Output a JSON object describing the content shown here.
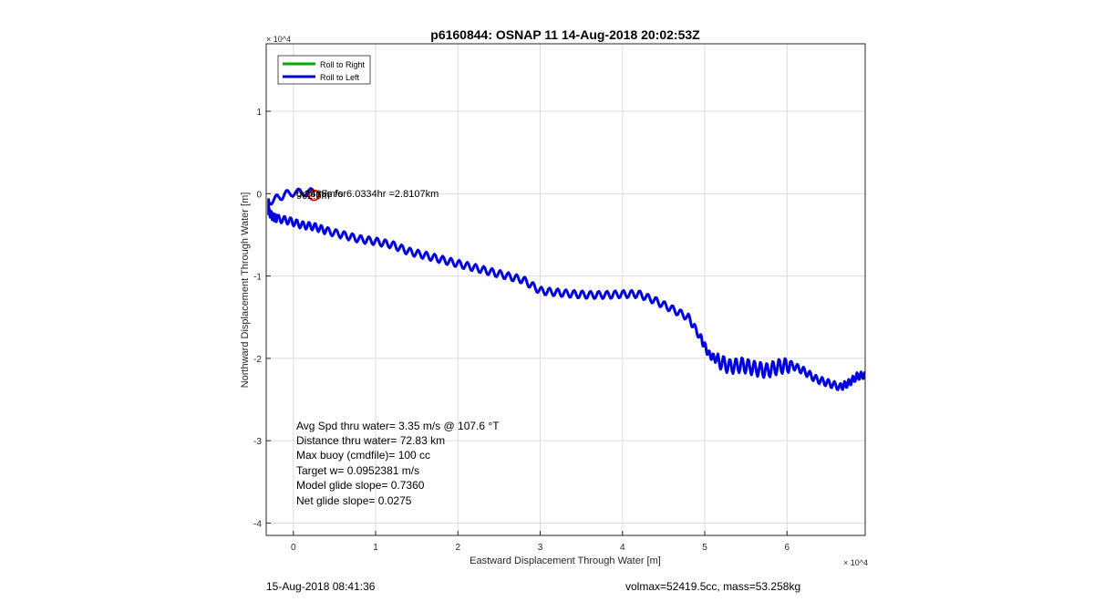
{
  "figure": {
    "footer_left": "15-Aug-2018 08:41:36",
    "footer_right": "volmax=52419.5cc, mass=53.258kg"
  },
  "chart_data": {
    "type": "line",
    "title": "p6160844: OSNAP 11 14-Aug-2018 20:02:53Z",
    "xlabel": "Eastward Displacement Through Water [m]",
    "ylabel": "Northward Displacement Through Water [m]",
    "x_exponent": "× 10^4",
    "y_exponent": "× 10^4",
    "xlim": [
      -0.33,
      6.95
    ],
    "ylim": [
      -4.15,
      1.82
    ],
    "xticks": [
      0,
      1,
      2,
      3,
      4,
      5,
      6
    ],
    "xtick_labels": [
      "0",
      "1",
      "2",
      "3",
      "4",
      "5",
      "6"
    ],
    "yticks": [
      1,
      0,
      -1,
      -2,
      -3,
      -4
    ],
    "ytick_labels": [
      "1",
      "0",
      "-1",
      "-2",
      "-3",
      "-4"
    ],
    "grid": true,
    "legend_position": "top-left",
    "series": [
      {
        "name": "Roll to Right",
        "color": "#00aa00",
        "x": [],
        "y": []
      },
      {
        "name": "Roll to Left",
        "color": "#0000dd",
        "x": [
          0.25,
          -0.05,
          -0.3,
          -0.3,
          -0.25,
          -0.2,
          -0.05,
          0.1,
          0.25,
          0.4,
          0.6,
          0.8,
          1.0,
          1.2,
          1.4,
          1.6,
          1.8,
          2.0,
          2.2,
          2.4,
          2.6,
          2.8,
          3.0,
          3.2,
          3.4,
          3.6,
          3.8,
          4.0,
          4.2,
          4.4,
          4.6,
          4.8,
          4.95,
          5.05,
          5.15,
          5.3,
          5.45,
          5.6,
          5.75,
          5.9,
          6.05,
          6.2,
          6.35,
          6.5,
          6.65,
          6.75,
          6.85,
          6.95
        ],
        "y": [
          0.02,
          0.01,
          -0.1,
          -0.22,
          -0.28,
          -0.3,
          -0.33,
          -0.38,
          -0.4,
          -0.45,
          -0.5,
          -0.55,
          -0.58,
          -0.62,
          -0.7,
          -0.75,
          -0.8,
          -0.85,
          -0.9,
          -0.95,
          -1.0,
          -1.05,
          -1.18,
          -1.2,
          -1.22,
          -1.23,
          -1.23,
          -1.22,
          -1.22,
          -1.3,
          -1.4,
          -1.5,
          -1.75,
          -1.95,
          -2.02,
          -2.1,
          -2.08,
          -2.12,
          -2.15,
          -2.1,
          -2.08,
          -2.15,
          -2.25,
          -2.3,
          -2.35,
          -2.3,
          -2.22,
          -2.2
        ]
      }
    ],
    "marker": {
      "x": 0.25,
      "y": -0.02,
      "color": "#dd0000"
    },
    "annotations": {
      "current": "0.13m/s for6.0334hr =2.8107km",
      "overlap_a": "0.2435m/s",
      "overlap_b": "962.5m"
    },
    "stats": [
      "Avg Spd thru water=  3.35 m/s @ 107.6 °T",
      "Distance thru water= 72.83 km",
      "Max buoy (cmdfile)= 100 cc",
      "Target w= 0.0952381 m/s",
      "Model glide slope= 0.7360",
      "Net glide slope= 0.0275"
    ]
  }
}
